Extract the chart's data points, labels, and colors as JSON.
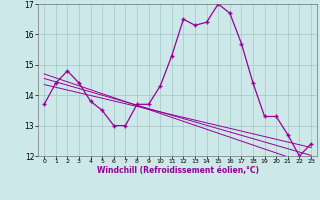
{
  "x": [
    0,
    1,
    2,
    3,
    4,
    5,
    6,
    7,
    8,
    9,
    10,
    11,
    12,
    13,
    14,
    15,
    16,
    17,
    18,
    19,
    20,
    21,
    22,
    23
  ],
  "windchill": [
    13.7,
    14.4,
    14.8,
    14.4,
    13.8,
    13.5,
    13.0,
    13.0,
    13.7,
    13.7,
    14.3,
    15.3,
    16.5,
    16.3,
    16.4,
    17.0,
    16.7,
    15.7,
    14.4,
    13.3,
    13.3,
    12.7,
    12.0,
    12.4
  ],
  "trend1": [
    14.7,
    14.57,
    14.44,
    14.31,
    14.18,
    14.05,
    13.92,
    13.79,
    13.66,
    13.53,
    13.4,
    13.27,
    13.14,
    13.01,
    12.88,
    12.75,
    12.62,
    12.49,
    12.36,
    12.23,
    12.1,
    11.97,
    11.84,
    11.71
  ],
  "trend2": [
    14.55,
    14.44,
    14.33,
    14.22,
    14.11,
    14.0,
    13.89,
    13.78,
    13.67,
    13.56,
    13.45,
    13.34,
    13.23,
    13.12,
    13.01,
    12.9,
    12.79,
    12.68,
    12.57,
    12.46,
    12.35,
    12.24,
    12.13,
    12.02
  ],
  "trend3": [
    14.35,
    14.26,
    14.17,
    14.08,
    13.99,
    13.9,
    13.81,
    13.72,
    13.63,
    13.54,
    13.45,
    13.36,
    13.27,
    13.18,
    13.09,
    13.0,
    12.91,
    12.82,
    12.73,
    12.64,
    12.55,
    12.46,
    12.37,
    12.28
  ],
  "bg_color": "#cce8e8",
  "line_color": "#990099",
  "grid_color": "#aacccc",
  "xlabel": "Windchill (Refroidissement éolien,°C)",
  "ylim": [
    12,
    17
  ],
  "xlim": [
    -0.5,
    23.5
  ],
  "yticks": [
    12,
    13,
    14,
    15,
    16,
    17
  ],
  "xticks": [
    0,
    1,
    2,
    3,
    4,
    5,
    6,
    7,
    8,
    9,
    10,
    11,
    12,
    13,
    14,
    15,
    16,
    17,
    18,
    19,
    20,
    21,
    22,
    23
  ]
}
